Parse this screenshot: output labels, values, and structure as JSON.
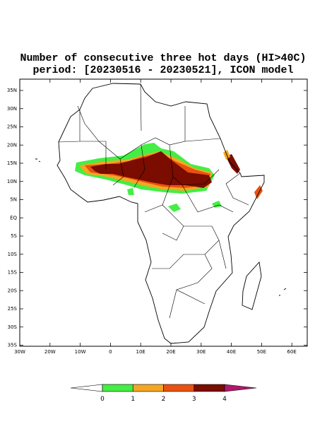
{
  "title": [
    "Number of consecutive three hot days (HI>40C)",
    "period: [20230516 - 20230521], ICON model"
  ],
  "map": {
    "lat_labels": [
      "35N",
      "30N",
      "25N",
      "20N",
      "15N",
      "10N",
      "5N",
      "EQ",
      "5S",
      "10S",
      "15S",
      "20S",
      "25S",
      "30S",
      "35S"
    ],
    "lon_labels": [
      "30W",
      "20W",
      "10W",
      "0",
      "10E",
      "20E",
      "30E",
      "40E",
      "50E",
      "60E"
    ]
  },
  "colorbar": {
    "ticks": [
      0,
      1,
      2,
      3,
      4
    ],
    "colors": [
      "#ffffff",
      "#44ee44",
      "#f5a623",
      "#e8520f",
      "#7a0c00",
      "#b0186e"
    ]
  }
}
